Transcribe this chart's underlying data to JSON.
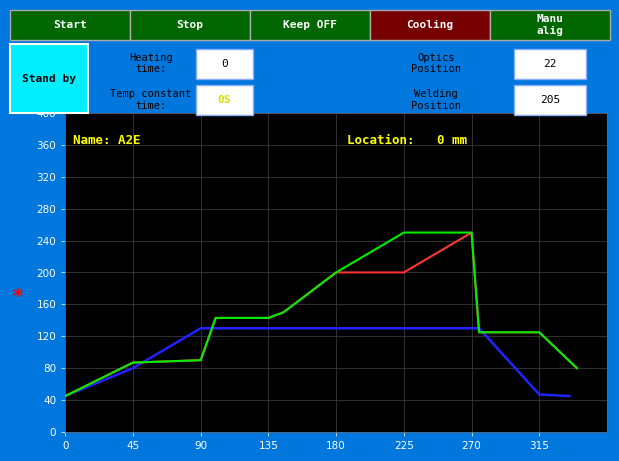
{
  "bg_color": "#000000",
  "panel_bg_color": "#0077DD",
  "title_text": "Name: A2E",
  "location_text": "Location:   0 mm",
  "ylim": [
    0,
    400
  ],
  "xlim": [
    0,
    360
  ],
  "yticks": [
    0,
    40,
    80,
    120,
    160,
    200,
    240,
    280,
    320,
    360,
    400
  ],
  "xticks": [
    0,
    45,
    90,
    135,
    180,
    225,
    270,
    315
  ],
  "grid_color": "#444444",
  "buttons": [
    {
      "label": "Start",
      "color": "#006600"
    },
    {
      "label": "Stop",
      "color": "#006600"
    },
    {
      "label": "Keep OFF",
      "color": "#006600"
    },
    {
      "label": "Cooling",
      "color": "#770000"
    },
    {
      "label": "Manu\nalig",
      "color": "#006600"
    }
  ],
  "standby_label": "Stand by",
  "standby_color": "#00EEFF",
  "green_line_x": [
    0,
    45,
    90,
    100,
    135,
    145,
    180,
    225,
    270,
    275,
    315,
    340
  ],
  "green_line_y": [
    45,
    87,
    90,
    143,
    143,
    150,
    200,
    250,
    250,
    125,
    125,
    80
  ],
  "red_line_x": [
    0,
    45,
    90,
    100,
    135,
    145,
    180,
    225,
    270,
    275,
    315,
    340
  ],
  "red_line_y": [
    45,
    87,
    90,
    143,
    143,
    150,
    200,
    200,
    250,
    125,
    125,
    80
  ],
  "blue_line_x": [
    0,
    45,
    90,
    270,
    275,
    315,
    335
  ],
  "blue_line_y": [
    45,
    80,
    130,
    130,
    130,
    47,
    45
  ]
}
